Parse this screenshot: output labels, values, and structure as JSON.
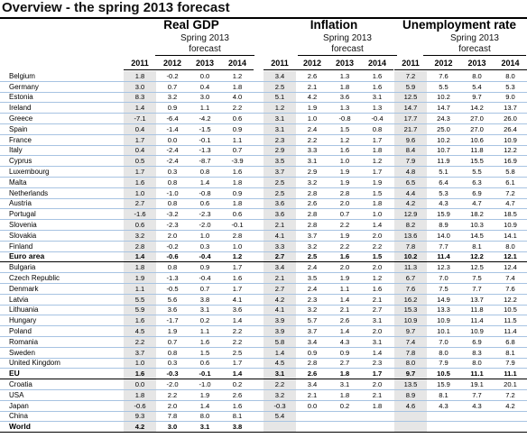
{
  "title": "Overview - the spring 2013 forecast",
  "groups": [
    {
      "name": "Real GDP",
      "sub1": "Spring 2013",
      "sub2": "forecast"
    },
    {
      "name": "Inflation",
      "sub1": "Spring 2013",
      "sub2": "forecast"
    },
    {
      "name": "Unemployment rate",
      "sub1": "Spring 2013",
      "sub2": "forecast"
    }
  ],
  "years": [
    "2011",
    "2012",
    "2013",
    "2014"
  ],
  "rows": [
    {
      "country": "Belgium",
      "gdp": [
        "1.8",
        "-0.2",
        "0.0",
        "1.2"
      ],
      "inf": [
        "3.4",
        "2.6",
        "1.3",
        "1.6"
      ],
      "unemp": [
        "7.2",
        "7.6",
        "8.0",
        "8.0"
      ]
    },
    {
      "country": "Germany",
      "gdp": [
        "3.0",
        "0.7",
        "0.4",
        "1.8"
      ],
      "inf": [
        "2.5",
        "2.1",
        "1.8",
        "1.6"
      ],
      "unemp": [
        "5.9",
        "5.5",
        "5.4",
        "5.3"
      ]
    },
    {
      "country": "Estonia",
      "gdp": [
        "8.3",
        "3.2",
        "3.0",
        "4.0"
      ],
      "inf": [
        "5.1",
        "4.2",
        "3.6",
        "3.1"
      ],
      "unemp": [
        "12.5",
        "10.2",
        "9.7",
        "9.0"
      ]
    },
    {
      "country": "Ireland",
      "gdp": [
        "1.4",
        "0.9",
        "1.1",
        "2.2"
      ],
      "inf": [
        "1.2",
        "1.9",
        "1.3",
        "1.3"
      ],
      "unemp": [
        "14.7",
        "14.7",
        "14.2",
        "13.7"
      ]
    },
    {
      "country": "Greece",
      "gdp": [
        "-7.1",
        "-6.4",
        "-4.2",
        "0.6"
      ],
      "inf": [
        "3.1",
        "1.0",
        "-0.8",
        "-0.4"
      ],
      "unemp": [
        "17.7",
        "24.3",
        "27.0",
        "26.0"
      ]
    },
    {
      "country": "Spain",
      "gdp": [
        "0.4",
        "-1.4",
        "-1.5",
        "0.9"
      ],
      "inf": [
        "3.1",
        "2.4",
        "1.5",
        "0.8"
      ],
      "unemp": [
        "21.7",
        "25.0",
        "27.0",
        "26.4"
      ]
    },
    {
      "country": "France",
      "gdp": [
        "1.7",
        "0.0",
        "-0.1",
        "1.1"
      ],
      "inf": [
        "2.3",
        "2.2",
        "1.2",
        "1.7"
      ],
      "unemp": [
        "9.6",
        "10.2",
        "10.6",
        "10.9"
      ]
    },
    {
      "country": "Italy",
      "gdp": [
        "0.4",
        "-2.4",
        "-1.3",
        "0.7"
      ],
      "inf": [
        "2.9",
        "3.3",
        "1.6",
        "1.8"
      ],
      "unemp": [
        "8.4",
        "10.7",
        "11.8",
        "12.2"
      ]
    },
    {
      "country": "Cyprus",
      "gdp": [
        "0.5",
        "-2.4",
        "-8.7",
        "-3.9"
      ],
      "inf": [
        "3.5",
        "3.1",
        "1.0",
        "1.2"
      ],
      "unemp": [
        "7.9",
        "11.9",
        "15.5",
        "16.9"
      ]
    },
    {
      "country": "Luxembourg",
      "gdp": [
        "1.7",
        "0.3",
        "0.8",
        "1.6"
      ],
      "inf": [
        "3.7",
        "2.9",
        "1.9",
        "1.7"
      ],
      "unemp": [
        "4.8",
        "5.1",
        "5.5",
        "5.8"
      ]
    },
    {
      "country": "Malta",
      "gdp": [
        "1.6",
        "0.8",
        "1.4",
        "1.8"
      ],
      "inf": [
        "2.5",
        "3.2",
        "1.9",
        "1.9"
      ],
      "unemp": [
        "6.5",
        "6.4",
        "6.3",
        "6.1"
      ]
    },
    {
      "country": "Netherlands",
      "gdp": [
        "1.0",
        "-1.0",
        "-0.8",
        "0.9"
      ],
      "inf": [
        "2.5",
        "2.8",
        "2.8",
        "1.5"
      ],
      "unemp": [
        "4.4",
        "5.3",
        "6.9",
        "7.2"
      ]
    },
    {
      "country": "Austria",
      "gdp": [
        "2.7",
        "0.8",
        "0.6",
        "1.8"
      ],
      "inf": [
        "3.6",
        "2.6",
        "2.0",
        "1.8"
      ],
      "unemp": [
        "4.2",
        "4.3",
        "4.7",
        "4.7"
      ]
    },
    {
      "country": "Portugal",
      "gdp": [
        "-1.6",
        "-3.2",
        "-2.3",
        "0.6"
      ],
      "inf": [
        "3.6",
        "2.8",
        "0.7",
        "1.0"
      ],
      "unemp": [
        "12.9",
        "15.9",
        "18.2",
        "18.5"
      ]
    },
    {
      "country": "Slovenia",
      "gdp": [
        "0.6",
        "-2.3",
        "-2.0",
        "-0.1"
      ],
      "inf": [
        "2.1",
        "2.8",
        "2.2",
        "1.4"
      ],
      "unemp": [
        "8.2",
        "8.9",
        "10.3",
        "10.9"
      ]
    },
    {
      "country": "Slovakia",
      "gdp": [
        "3.2",
        "2.0",
        "1.0",
        "2.8"
      ],
      "inf": [
        "4.1",
        "3.7",
        "1.9",
        "2.0"
      ],
      "unemp": [
        "13.6",
        "14.0",
        "14.5",
        "14.1"
      ]
    },
    {
      "country": "Finland",
      "gdp": [
        "2.8",
        "-0.2",
        "0.3",
        "1.0"
      ],
      "inf": [
        "3.3",
        "3.2",
        "2.2",
        "2.2"
      ],
      "unemp": [
        "7.8",
        "7.7",
        "8.1",
        "8.0"
      ]
    },
    {
      "country": "Euro area",
      "aggregate": true,
      "gdp": [
        "1.4",
        "-0.6",
        "-0.4",
        "1.2"
      ],
      "inf": [
        "2.7",
        "2.5",
        "1.6",
        "1.5"
      ],
      "unemp": [
        "10.2",
        "11.4",
        "12.2",
        "12.1"
      ]
    },
    {
      "country": "Bulgaria",
      "gdp": [
        "1.8",
        "0.8",
        "0.9",
        "1.7"
      ],
      "inf": [
        "3.4",
        "2.4",
        "2.0",
        "2.0"
      ],
      "unemp": [
        "11.3",
        "12.3",
        "12.5",
        "12.4"
      ]
    },
    {
      "country": "Czech Republic",
      "gdp": [
        "1.9",
        "-1.3",
        "-0.4",
        "1.6"
      ],
      "inf": [
        "2.1",
        "3.5",
        "1.9",
        "1.2"
      ],
      "unemp": [
        "6.7",
        "7.0",
        "7.5",
        "7.4"
      ]
    },
    {
      "country": "Denmark",
      "gdp": [
        "1.1",
        "-0.5",
        "0.7",
        "1.7"
      ],
      "inf": [
        "2.7",
        "2.4",
        "1.1",
        "1.6"
      ],
      "unemp": [
        "7.6",
        "7.5",
        "7.7",
        "7.6"
      ]
    },
    {
      "country": "Latvia",
      "gdp": [
        "5.5",
        "5.6",
        "3.8",
        "4.1"
      ],
      "inf": [
        "4.2",
        "2.3",
        "1.4",
        "2.1"
      ],
      "unemp": [
        "16.2",
        "14.9",
        "13.7",
        "12.2"
      ]
    },
    {
      "country": "Lithuania",
      "gdp": [
        "5.9",
        "3.6",
        "3.1",
        "3.6"
      ],
      "inf": [
        "4.1",
        "3.2",
        "2.1",
        "2.7"
      ],
      "unemp": [
        "15.3",
        "13.3",
        "11.8",
        "10.5"
      ]
    },
    {
      "country": "Hungary",
      "gdp": [
        "1.6",
        "-1.7",
        "0.2",
        "1.4"
      ],
      "inf": [
        "3.9",
        "5.7",
        "2.6",
        "3.1"
      ],
      "unemp": [
        "10.9",
        "10.9",
        "11.4",
        "11.5"
      ]
    },
    {
      "country": "Poland",
      "gdp": [
        "4.5",
        "1.9",
        "1.1",
        "2.2"
      ],
      "inf": [
        "3.9",
        "3.7",
        "1.4",
        "2.0"
      ],
      "unemp": [
        "9.7",
        "10.1",
        "10.9",
        "11.4"
      ]
    },
    {
      "country": "Romania",
      "gdp": [
        "2.2",
        "0.7",
        "1.6",
        "2.2"
      ],
      "inf": [
        "5.8",
        "3.4",
        "4.3",
        "3.1"
      ],
      "unemp": [
        "7.4",
        "7.0",
        "6.9",
        "6.8"
      ]
    },
    {
      "country": "Sweden",
      "gdp": [
        "3.7",
        "0.8",
        "1.5",
        "2.5"
      ],
      "inf": [
        "1.4",
        "0.9",
        "0.9",
        "1.4"
      ],
      "unemp": [
        "7.8",
        "8.0",
        "8.3",
        "8.1"
      ]
    },
    {
      "country": "United Kingdom",
      "gdp": [
        "1.0",
        "0.3",
        "0.6",
        "1.7"
      ],
      "inf": [
        "4.5",
        "2.8",
        "2.7",
        "2.3"
      ],
      "unemp": [
        "8.0",
        "7.9",
        "8.0",
        "7.9"
      ]
    },
    {
      "country": "EU",
      "aggregate": true,
      "gdp": [
        "1.6",
        "-0.3",
        "-0.1",
        "1.4"
      ],
      "inf": [
        "3.1",
        "2.6",
        "1.8",
        "1.7"
      ],
      "unemp": [
        "9.7",
        "10.5",
        "11.1",
        "11.1"
      ]
    },
    {
      "country": "Croatia",
      "gdp": [
        "0.0",
        "-2.0",
        "-1.0",
        "0.2"
      ],
      "inf": [
        "2.2",
        "3.4",
        "3.1",
        "2.0"
      ],
      "unemp": [
        "13.5",
        "15.9",
        "19.1",
        "20.1"
      ]
    },
    {
      "country": "USA",
      "gdp": [
        "1.8",
        "2.2",
        "1.9",
        "2.6"
      ],
      "inf": [
        "3.2",
        "2.1",
        "1.8",
        "2.1"
      ],
      "unemp": [
        "8.9",
        "8.1",
        "7.7",
        "7.2"
      ]
    },
    {
      "country": "Japan",
      "gdp": [
        "-0.6",
        "2.0",
        "1.4",
        "1.6"
      ],
      "inf": [
        "-0.3",
        "0.0",
        "0.2",
        "1.8"
      ],
      "unemp": [
        "4.6",
        "4.3",
        "4.3",
        "4.2"
      ]
    },
    {
      "country": "China",
      "gdp": [
        "9.3",
        "7.8",
        "8.0",
        "8.1"
      ],
      "inf": [
        "5.4",
        "",
        "",
        ""
      ],
      "unemp": [
        "",
        "",
        "",
        ""
      ]
    },
    {
      "country": "World",
      "aggregate": true,
      "gdp": [
        "4.2",
        "3.0",
        "3.1",
        "3.8"
      ],
      "inf": [
        "",
        "",
        "",
        ""
      ],
      "unemp": [
        "",
        "",
        "",
        ""
      ]
    }
  ]
}
